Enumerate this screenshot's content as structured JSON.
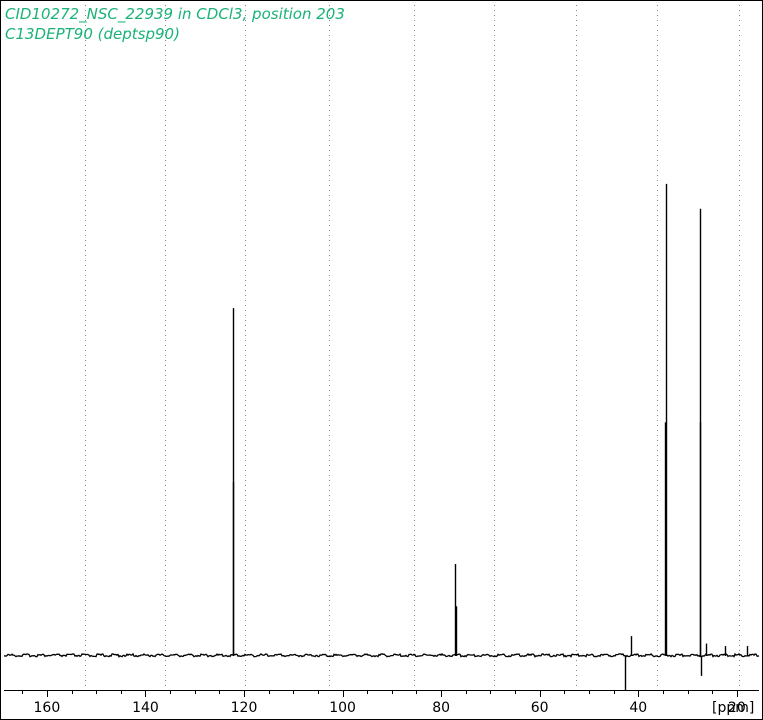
{
  "chart_data": {
    "type": "line",
    "title": "CID10272_NSC_22939 in CDCl3, position 203",
    "subtitle": "C13DEPT90 (deptsp90)",
    "xlabel": "[ppm]",
    "x_reversed": true,
    "xlim": [
      168.7,
      15.5
    ],
    "ylim": [
      -0.12,
      1.0
    ],
    "grid": {
      "x_dotted": true,
      "y": false
    },
    "x_ticks": [
      160,
      140,
      120,
      100,
      80,
      60,
      40,
      20
    ],
    "x_grid": [
      152.3,
      136.1,
      119.8,
      102.8,
      85.6,
      69.3,
      52.6,
      36.1,
      19.6
    ],
    "baseline": 0,
    "peaks": [
      {
        "x": 122.3,
        "y": 0.7
      },
      {
        "x": 122.15,
        "y": 0.35
      },
      {
        "x": 77.2,
        "y": 0.185
      },
      {
        "x": 77.05,
        "y": 0.1
      },
      {
        "x": 42.6,
        "y": -0.07
      },
      {
        "x": 41.5,
        "y": 0.04
      },
      {
        "x": 34.4,
        "y": 0.95
      },
      {
        "x": 34.55,
        "y": 0.47
      },
      {
        "x": 27.4,
        "y": 0.9
      },
      {
        "x": 27.55,
        "y": 0.47
      },
      {
        "x": 27.2,
        "y": -0.04
      },
      {
        "x": 26.3,
        "y": 0.025
      },
      {
        "x": 22.5,
        "y": 0.02
      },
      {
        "x": 17.9,
        "y": 0.02
      }
    ],
    "colors": {
      "title": "#19b277",
      "trace": "#000000",
      "grid": "#888888",
      "axis": "#000000"
    }
  }
}
